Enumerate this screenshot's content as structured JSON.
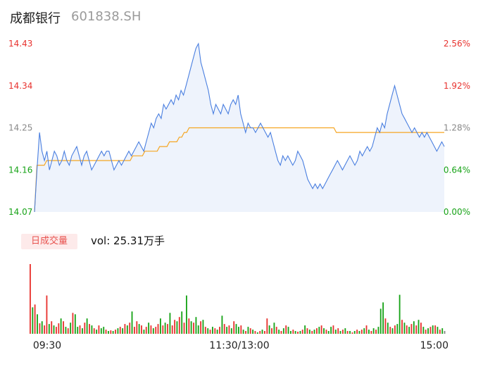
{
  "header": {
    "stock_name": "成都银行",
    "stock_code": "601838.SH"
  },
  "volume_panel": {
    "tab_label": "日成交量",
    "vol_prefix": "vol: ",
    "vol_value": "25.31万手"
  },
  "colors": {
    "price_line": "#4a7fe0",
    "avg_line": "#f5a623",
    "up": "#e8332f",
    "down": "#18a318",
    "neutral": "#888888",
    "area_fill": "#eef3fc"
  },
  "chart_data": [
    {
      "type": "line",
      "title": "",
      "xlabel": "",
      "ylabel": "",
      "ylim": [
        14.07,
        14.43
      ],
      "y_ticks": [
        "14.43",
        "14.34",
        "14.25",
        "14.16",
        "14.07"
      ],
      "y_right_ticks": [
        "2.56%",
        "1.92%",
        "1.28%",
        "0.64%",
        "0.00%"
      ],
      "grid": false,
      "series": [
        {
          "values": [
            14.07,
            14.16,
            14.24,
            14.2,
            14.18,
            14.2,
            14.16,
            14.18,
            14.2,
            14.19,
            14.17,
            14.18,
            14.2,
            14.18,
            14.17,
            14.19,
            14.2,
            14.21,
            14.19,
            14.17,
            14.19,
            14.2,
            14.18,
            14.16,
            14.17,
            14.18,
            14.19,
            14.2,
            14.19,
            14.2,
            14.2,
            14.18,
            14.16,
            14.17,
            14.18,
            14.17,
            14.18,
            14.19,
            14.2,
            14.19,
            14.2,
            14.21,
            14.22,
            14.21,
            14.2,
            14.22,
            14.24,
            14.26,
            14.25,
            14.27,
            14.28,
            14.27,
            14.3,
            14.29,
            14.3,
            14.31,
            14.3,
            14.32,
            14.31,
            14.33,
            14.32,
            14.34,
            14.36,
            14.38,
            14.4,
            14.42,
            14.43,
            14.39,
            14.37,
            14.35,
            14.33,
            14.3,
            14.28,
            14.3,
            14.29,
            14.28,
            14.3,
            14.29,
            14.28,
            14.3,
            14.31,
            14.3,
            14.32,
            14.28,
            14.26,
            14.24,
            14.26,
            14.25,
            14.25,
            14.24,
            14.25,
            14.26,
            14.25,
            14.24,
            14.23,
            14.24,
            14.22,
            14.2,
            14.18,
            14.17,
            14.19,
            14.18,
            14.19,
            14.18,
            14.17,
            14.18,
            14.2,
            14.19,
            14.18,
            14.16,
            14.14,
            14.13,
            14.12,
            14.13,
            14.12,
            14.13,
            14.12,
            14.13,
            14.14,
            14.15,
            14.16,
            14.17,
            14.18,
            14.17,
            14.16,
            14.17,
            14.18,
            14.19,
            14.18,
            14.17,
            14.18,
            14.2,
            14.19,
            14.2,
            14.21,
            14.2,
            14.21,
            14.23,
            14.25,
            14.24,
            14.26,
            14.25,
            14.28,
            14.3,
            14.32,
            14.34,
            14.32,
            14.3,
            14.28,
            14.27,
            14.26,
            14.25,
            14.24,
            14.25,
            14.24,
            14.23,
            14.24,
            14.23,
            14.24,
            14.23,
            14.22,
            14.21,
            14.2,
            14.21,
            14.22,
            14.21
          ],
          "x_ticks": [
            "09:30",
            "11:30/13:00",
            "15:00"
          ]
        },
        {
          "values": [
            14.07,
            14.17,
            14.17,
            14.17,
            14.17,
            14.18,
            14.18,
            14.18,
            14.18,
            14.18,
            14.18,
            14.18,
            14.18,
            14.18,
            14.18,
            14.18,
            14.18,
            14.18,
            14.18,
            14.18,
            14.18,
            14.18,
            14.18,
            14.18,
            14.18,
            14.18,
            14.18,
            14.18,
            14.18,
            14.18,
            14.18,
            14.18,
            14.18,
            14.18,
            14.18,
            14.18,
            14.18,
            14.18,
            14.18,
            14.18,
            14.19,
            14.19,
            14.19,
            14.19,
            14.19,
            14.2,
            14.2,
            14.2,
            14.2,
            14.2,
            14.2,
            14.21,
            14.21,
            14.21,
            14.21,
            14.22,
            14.22,
            14.22,
            14.22,
            14.23,
            14.23,
            14.24,
            14.24,
            14.25,
            14.25,
            14.25,
            14.25,
            14.25,
            14.25,
            14.25,
            14.25,
            14.25,
            14.25,
            14.25,
            14.25,
            14.25,
            14.25,
            14.25,
            14.25,
            14.25,
            14.25,
            14.25,
            14.25,
            14.25,
            14.25,
            14.25,
            14.25,
            14.25,
            14.25,
            14.25,
            14.25,
            14.25,
            14.25,
            14.25,
            14.25,
            14.25,
            14.25,
            14.25,
            14.25,
            14.25,
            14.25,
            14.25,
            14.25,
            14.25,
            14.25,
            14.25,
            14.25,
            14.25,
            14.25,
            14.25,
            14.25,
            14.25,
            14.25,
            14.25,
            14.25,
            14.25,
            14.25,
            14.25,
            14.25,
            14.25,
            14.25,
            14.25,
            14.25,
            14.24,
            14.24,
            14.24,
            14.24,
            14.24,
            14.24,
            14.24,
            14.24,
            14.24,
            14.24,
            14.24,
            14.24,
            14.24,
            14.24,
            14.24,
            14.24,
            14.24,
            14.24,
            14.24,
            14.24,
            14.24,
            14.24,
            14.24,
            14.24,
            14.24,
            14.24,
            14.24,
            14.24,
            14.24,
            14.24,
            14.24,
            14.24,
            14.24,
            14.24,
            14.24,
            14.24,
            14.24,
            14.24,
            14.24,
            14.24,
            14.24,
            14.24,
            14.24,
            14.24,
            14.24
          ]
        }
      ]
    },
    {
      "type": "bar",
      "title": "",
      "xlabel": "",
      "ylabel": "",
      "x_ticks": [
        "09:30",
        "11:30/13:00",
        "15:00"
      ],
      "values": [
        100,
        38,
        42,
        28,
        15,
        18,
        12,
        55,
        14,
        18,
        12,
        10,
        15,
        22,
        18,
        10,
        8,
        16,
        30,
        28,
        10,
        12,
        8,
        16,
        22,
        14,
        12,
        8,
        6,
        12,
        8,
        10,
        6,
        4,
        5,
        4,
        6,
        8,
        10,
        8,
        14,
        12,
        16,
        32,
        10,
        18,
        14,
        12,
        6,
        10,
        16,
        12,
        8,
        10,
        14,
        22,
        12,
        16,
        14,
        30,
        12,
        20,
        18,
        24,
        32,
        16,
        55,
        22,
        18,
        16,
        24,
        12,
        18,
        20,
        10,
        8,
        6,
        10,
        8,
        6,
        10,
        26,
        14,
        10,
        12,
        8,
        18,
        14,
        10,
        12,
        6,
        4,
        10,
        8,
        6,
        4,
        2,
        4,
        6,
        4,
        22,
        12,
        8,
        16,
        10,
        6,
        4,
        8,
        12,
        10,
        4,
        6,
        4,
        3,
        4,
        6,
        12,
        8,
        6,
        4,
        6,
        8,
        10,
        12,
        8,
        6,
        4,
        10,
        12,
        6,
        8,
        4,
        6,
        8,
        4,
        4,
        2,
        4,
        6,
        4,
        6,
        8,
        12,
        6,
        4,
        8,
        6,
        10,
        36,
        45,
        22,
        16,
        10,
        8,
        12,
        14,
        56,
        20,
        16,
        12,
        10,
        14,
        18,
        12,
        20,
        16,
        10,
        6,
        8,
        10,
        12,
        12,
        10,
        6,
        8,
        4
      ],
      "colors": [
        "u",
        "d",
        "u",
        "d",
        "u",
        "d",
        "u",
        "u",
        "d",
        "u",
        "d",
        "u",
        "u",
        "d",
        "u",
        "d",
        "u",
        "d",
        "u",
        "d",
        "d",
        "u",
        "d",
        "u",
        "d",
        "u",
        "d",
        "u",
        "d",
        "u",
        "d",
        "d",
        "u",
        "d",
        "u",
        "d",
        "u",
        "d",
        "u",
        "d",
        "u",
        "d",
        "u",
        "d",
        "u",
        "u",
        "d",
        "u",
        "d",
        "u",
        "d",
        "u",
        "d",
        "u",
        "u",
        "d",
        "u",
        "d",
        "u",
        "d",
        "u",
        "u",
        "d",
        "u",
        "d",
        "u",
        "d",
        "u",
        "d",
        "u",
        "d",
        "d",
        "u",
        "d",
        "u",
        "d",
        "u",
        "d",
        "u",
        "d",
        "u",
        "d",
        "u",
        "d",
        "u",
        "d",
        "u",
        "d",
        "d",
        "u",
        "d",
        "u",
        "d",
        "u",
        "d",
        "u",
        "d",
        "u",
        "d",
        "u",
        "u",
        "d",
        "u",
        "d",
        "u",
        "d",
        "u",
        "d",
        "u",
        "d",
        "d",
        "u",
        "d",
        "u",
        "d",
        "u",
        "d",
        "u",
        "d",
        "u",
        "d",
        "u",
        "d",
        "u",
        "d",
        "u",
        "d",
        "d",
        "u",
        "d",
        "u",
        "d",
        "u",
        "d",
        "u",
        "d",
        "u",
        "d",
        "u",
        "d",
        "u",
        "d",
        "u",
        "d",
        "u",
        "d",
        "u",
        "d",
        "d",
        "d",
        "u",
        "d",
        "u",
        "d",
        "u",
        "d",
        "d",
        "u",
        "d",
        "u",
        "d",
        "u",
        "d",
        "u",
        "d",
        "u",
        "d",
        "u",
        "d",
        "u",
        "d",
        "u",
        "d",
        "u",
        "d",
        "n"
      ]
    }
  ]
}
